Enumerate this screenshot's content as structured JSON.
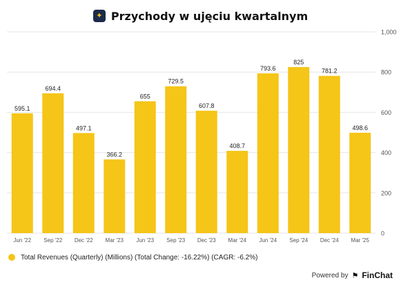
{
  "header": {
    "title": "Przychody w ujęciu kwartalnym",
    "icon": "sparkle-icon"
  },
  "colors": {
    "bar": "#F5C518",
    "grid": "#E6E6E6",
    "axis_text": "#555555"
  },
  "chart_data": {
    "type": "bar",
    "categories": [
      "Jun '22",
      "Sep '22",
      "Dec '22",
      "Mar '23",
      "Jun '23",
      "Sep '23",
      "Dec '23",
      "Mar '24",
      "Jun '24",
      "Sep '24",
      "Dec '24",
      "Mar '25"
    ],
    "values": [
      595.1,
      694.4,
      497.1,
      366.2,
      655,
      729.5,
      607.8,
      408.7,
      793.6,
      825,
      781.2,
      498.6
    ],
    "value_labels": [
      "595.1",
      "694.4",
      "497.1",
      "366.2",
      "655",
      "729.5",
      "607.8",
      "408.7",
      "793.6",
      "825",
      "781.2",
      "498.6"
    ],
    "ylim": [
      0,
      1000
    ],
    "y_ticks": [
      0,
      200,
      400,
      600,
      800,
      1000
    ],
    "y_tick_labels": [
      "0",
      "200",
      "400",
      "600",
      "800",
      "1,000"
    ],
    "y_axis_side": "right",
    "grid": true,
    "legend_position": "bottom-left"
  },
  "legend": {
    "label": "Total Revenues (Quarterly) (Millions) (Total Change: -16.22%) (CAGR: -6.2%)"
  },
  "footer": {
    "powered_by": "Powered by",
    "brand": "FinChat",
    "brand_icon": "finchat-logo-icon"
  }
}
